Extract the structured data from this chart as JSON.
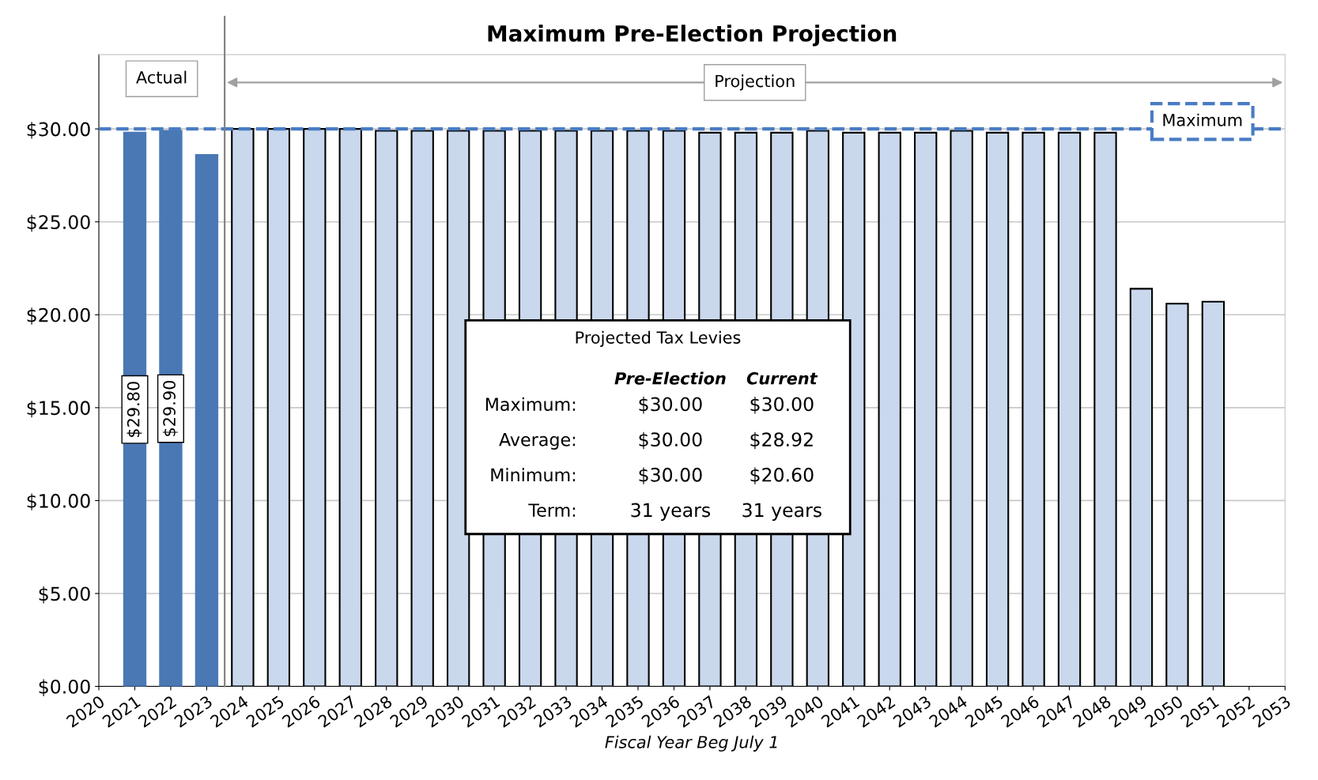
{
  "chart_data": {
    "type": "bar",
    "title": "Maximum Pre-Election Projection",
    "xlabel": "Fiscal Year Beg July 1",
    "series": [
      {
        "color": "#4a78b5",
        "x": [
          2021,
          2022,
          2023
        ],
        "values": [
          29.8,
          29.9,
          28.6
        ],
        "value_labels": [
          "$29.80",
          "$29.90",
          null
        ]
      },
      {
        "color": "#c9d8ec",
        "x": [
          2024,
          2025,
          2026,
          2027,
          2028,
          2029,
          2030,
          2031,
          2032,
          2033,
          2034,
          2035,
          2036,
          2037,
          2038,
          2039,
          2040,
          2041,
          2042,
          2043,
          2044,
          2045,
          2046,
          2047,
          2048,
          2049,
          2050,
          2051
        ],
        "values": [
          30.0,
          30.0,
          30.0,
          30.0,
          29.9,
          29.9,
          29.9,
          29.9,
          29.9,
          29.9,
          29.9,
          29.9,
          29.9,
          29.8,
          29.8,
          29.8,
          29.9,
          29.8,
          29.8,
          29.8,
          29.9,
          29.8,
          29.8,
          29.8,
          29.8,
          21.4,
          20.6,
          20.7
        ]
      }
    ],
    "xlim": [
      2020,
      2053
    ],
    "xticks": [
      2020,
      2021,
      2022,
      2023,
      2024,
      2025,
      2026,
      2027,
      2028,
      2029,
      2030,
      2031,
      2032,
      2033,
      2034,
      2035,
      2036,
      2037,
      2038,
      2039,
      2040,
      2041,
      2042,
      2043,
      2044,
      2045,
      2046,
      2047,
      2048,
      2049,
      2050,
      2051,
      2052,
      2053
    ],
    "ylim": [
      0,
      34
    ],
    "yticks": [
      {
        "value": 0,
        "label": "$0.00"
      },
      {
        "value": 5,
        "label": "$5.00"
      },
      {
        "value": 10,
        "label": "$10.00"
      },
      {
        "value": 15,
        "label": "$15.00"
      },
      {
        "value": 20,
        "label": "$20.00"
      },
      {
        "value": 25,
        "label": "$25.00"
      },
      {
        "value": 30,
        "label": "$30.00"
      }
    ],
    "grid": "y",
    "ref_lines": [
      {
        "axis": "y",
        "value": 30,
        "label": "Maximum",
        "color": "#4a7cc4",
        "line_style": "dashed"
      },
      {
        "axis": "x",
        "value": 2023.5,
        "color": "#7f7f7f",
        "line_style": "solid"
      }
    ],
    "annotations": [
      "Actual",
      "Projection",
      "Projected Tax Levies",
      "Pre-Election",
      "Current",
      "Maximum:",
      "$30.00",
      "$30.00",
      "Average:",
      "$30.00",
      "$28.92",
      "Minimum:",
      "$30.00",
      "$20.60",
      "Term:",
      "31 years",
      "31 years"
    ]
  }
}
